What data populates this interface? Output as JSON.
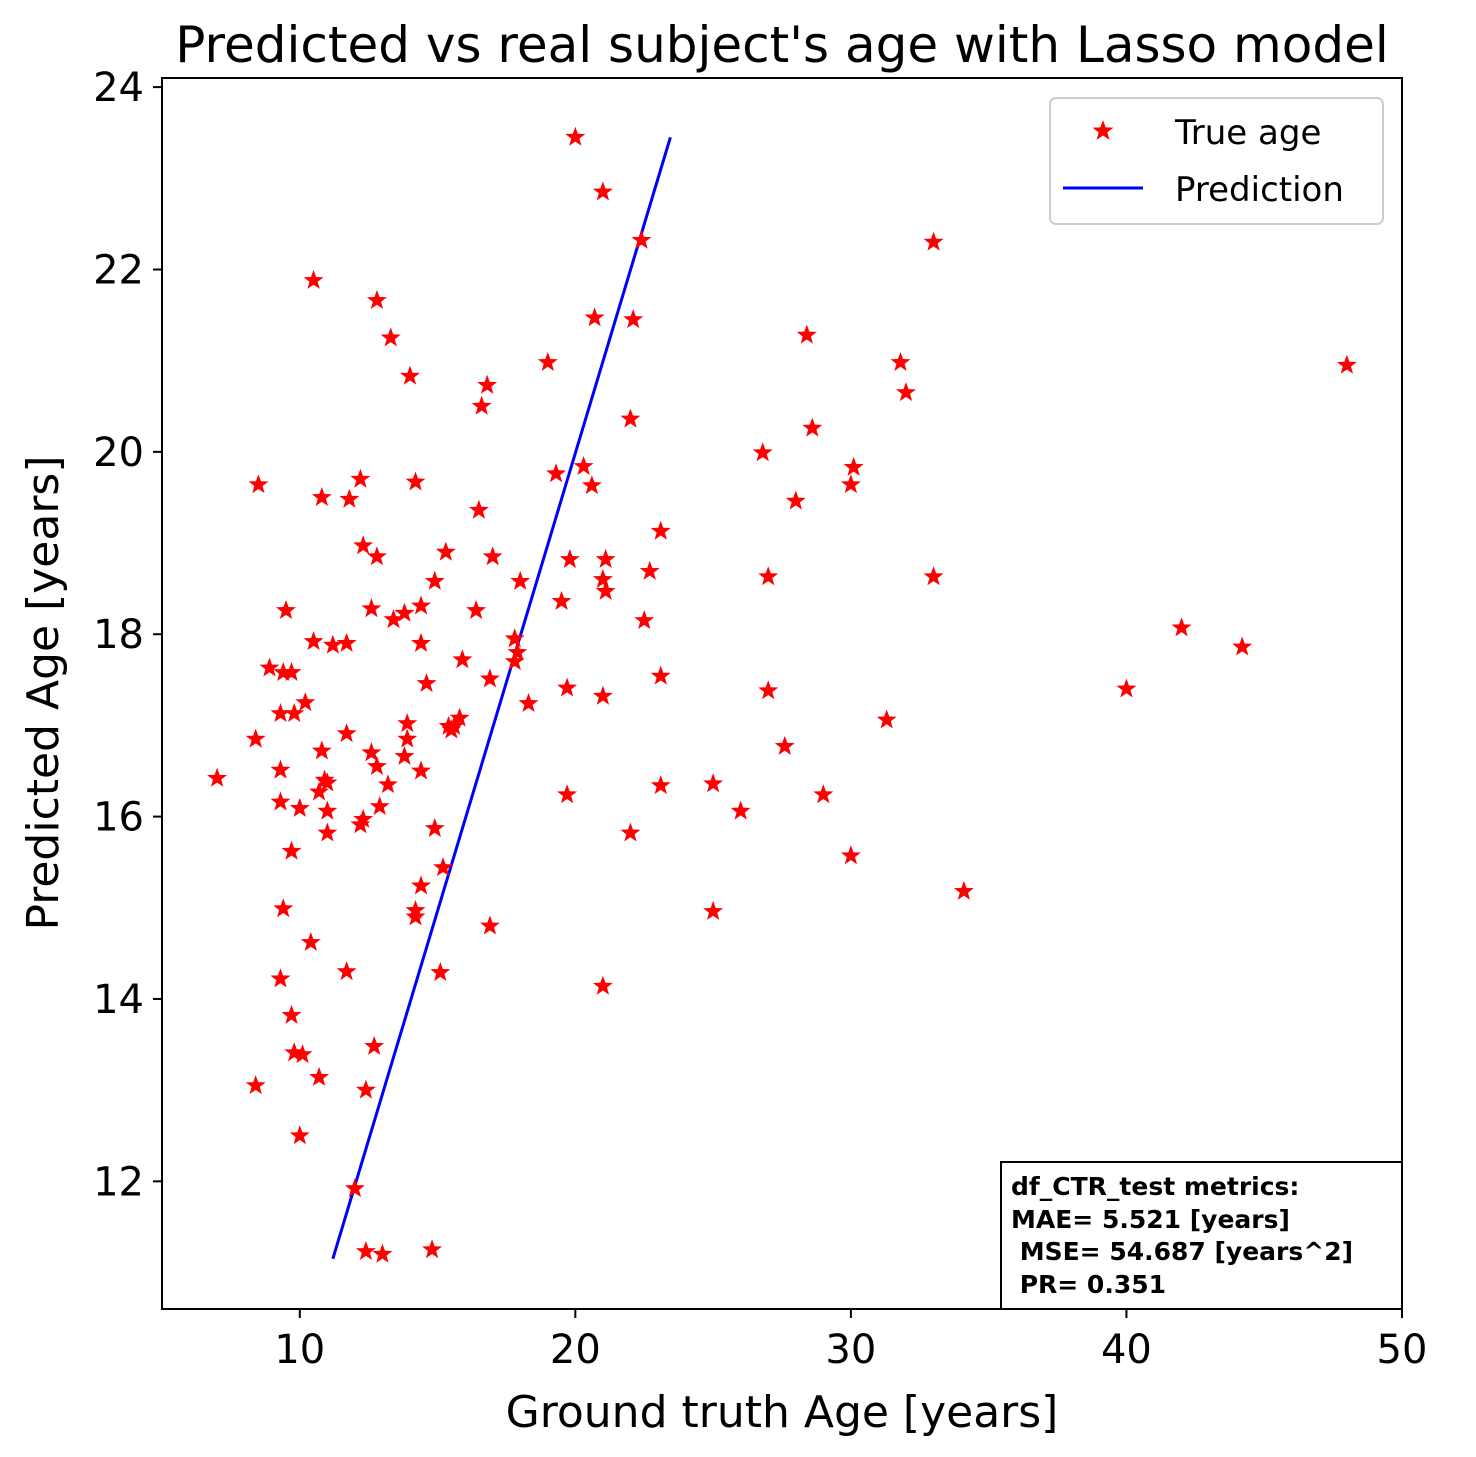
{
  "chart_data": {
    "type": "scatter",
    "title": "Predicted vs real subject's age with Lasso model",
    "xlabel": "Ground truth Age [years]",
    "ylabel": "Predicted Age [years]",
    "xlim": [
      5,
      50
    ],
    "ylim": [
      10.6,
      24.1
    ],
    "xticks": [
      10,
      20,
      30,
      40,
      50
    ],
    "yticks": [
      12,
      14,
      16,
      18,
      20,
      22,
      24
    ],
    "grid": false,
    "legend_position": "top-right",
    "legend": [
      {
        "label": "True age",
        "marker": "star",
        "color": "#ff0000"
      },
      {
        "label": "Prediction",
        "marker": "line",
        "color": "#0000ff"
      }
    ],
    "metrics_box": {
      "position": "bottom-right",
      "lines": [
        "df_CTR_test metrics:",
        "MAE= 5.521 [years]",
        " MSE= 54.687 [years^2]",
        " PR= 0.351"
      ]
    },
    "series": [
      {
        "name": "True age",
        "type": "scatter",
        "color": "#ff0000",
        "points": [
          [
            20.0,
            23.45
          ],
          [
            21.0,
            22.85
          ],
          [
            22.4,
            22.32
          ],
          [
            33.0,
            22.3
          ],
          [
            10.5,
            21.88
          ],
          [
            12.8,
            21.66
          ],
          [
            20.7,
            21.47
          ],
          [
            22.1,
            21.45
          ],
          [
            28.4,
            21.28
          ],
          [
            13.3,
            21.25
          ],
          [
            19.0,
            20.98
          ],
          [
            31.8,
            20.98
          ],
          [
            48.0,
            20.95
          ],
          [
            14.0,
            20.83
          ],
          [
            16.8,
            20.73
          ],
          [
            32.0,
            20.65
          ],
          [
            16.6,
            20.5
          ],
          [
            22.0,
            20.36
          ],
          [
            28.6,
            20.26
          ],
          [
            26.8,
            19.99
          ],
          [
            20.3,
            19.84
          ],
          [
            30.1,
            19.83
          ],
          [
            19.3,
            19.76
          ],
          [
            12.2,
            19.7
          ],
          [
            14.2,
            19.67
          ],
          [
            8.5,
            19.64
          ],
          [
            20.6,
            19.63
          ],
          [
            30.0,
            19.64
          ],
          [
            10.8,
            19.5
          ],
          [
            11.8,
            19.48
          ],
          [
            28.0,
            19.46
          ],
          [
            16.5,
            19.36
          ],
          [
            23.1,
            19.13
          ],
          [
            12.3,
            18.97
          ],
          [
            15.3,
            18.9
          ],
          [
            17.0,
            18.85
          ],
          [
            12.8,
            18.85
          ],
          [
            19.8,
            18.82
          ],
          [
            21.1,
            18.82
          ],
          [
            22.7,
            18.69
          ],
          [
            27.0,
            18.63
          ],
          [
            33.0,
            18.63
          ],
          [
            21.0,
            18.6
          ],
          [
            14.9,
            18.58
          ],
          [
            18.0,
            18.58
          ],
          [
            21.1,
            18.47
          ],
          [
            19.5,
            18.36
          ],
          [
            14.4,
            18.31
          ],
          [
            12.6,
            18.28
          ],
          [
            9.5,
            18.26
          ],
          [
            16.4,
            18.26
          ],
          [
            13.8,
            18.23
          ],
          [
            13.4,
            18.16
          ],
          [
            22.5,
            18.15
          ],
          [
            42.0,
            18.07
          ],
          [
            17.8,
            17.95
          ],
          [
            10.5,
            17.92
          ],
          [
            14.4,
            17.9
          ],
          [
            11.2,
            17.88
          ],
          [
            11.7,
            17.9
          ],
          [
            44.2,
            17.86
          ],
          [
            17.9,
            17.8
          ],
          [
            17.8,
            17.7
          ],
          [
            15.9,
            17.72
          ],
          [
            8.9,
            17.63
          ],
          [
            9.4,
            17.58
          ],
          [
            9.7,
            17.58
          ],
          [
            16.9,
            17.51
          ],
          [
            23.1,
            17.54
          ],
          [
            14.6,
            17.46
          ],
          [
            19.7,
            17.41
          ],
          [
            40.0,
            17.4
          ],
          [
            27.0,
            17.38
          ],
          [
            21.0,
            17.32
          ],
          [
            18.3,
            17.24
          ],
          [
            10.2,
            17.25
          ],
          [
            9.3,
            17.13
          ],
          [
            9.8,
            17.13
          ],
          [
            15.8,
            17.08
          ],
          [
            31.3,
            17.06
          ],
          [
            13.9,
            17.02
          ],
          [
            15.4,
            16.99
          ],
          [
            15.6,
            16.99
          ],
          [
            15.5,
            16.95
          ],
          [
            11.7,
            16.91
          ],
          [
            13.9,
            16.85
          ],
          [
            8.4,
            16.85
          ],
          [
            27.6,
            16.77
          ],
          [
            10.8,
            16.72
          ],
          [
            12.6,
            16.7
          ],
          [
            13.8,
            16.66
          ],
          [
            12.8,
            16.55
          ],
          [
            9.3,
            16.51
          ],
          [
            14.4,
            16.5
          ],
          [
            7.0,
            16.42
          ],
          [
            10.9,
            16.4
          ],
          [
            11.0,
            16.37
          ],
          [
            25.0,
            16.36
          ],
          [
            13.2,
            16.35
          ],
          [
            23.1,
            16.34
          ],
          [
            10.7,
            16.27
          ],
          [
            29.0,
            16.24
          ],
          [
            19.7,
            16.24
          ],
          [
            9.3,
            16.16
          ],
          [
            12.9,
            16.11
          ],
          [
            10.0,
            16.09
          ],
          [
            26.0,
            16.06
          ],
          [
            11.0,
            16.06
          ],
          [
            12.3,
            15.97
          ],
          [
            12.2,
            15.91
          ],
          [
            14.9,
            15.87
          ],
          [
            11.0,
            15.82
          ],
          [
            22.0,
            15.82
          ],
          [
            9.7,
            15.62
          ],
          [
            30.0,
            15.57
          ],
          [
            15.2,
            15.44
          ],
          [
            14.4,
            15.24
          ],
          [
            34.1,
            15.18
          ],
          [
            9.4,
            14.99
          ],
          [
            14.2,
            14.97
          ],
          [
            25.0,
            14.96
          ],
          [
            14.2,
            14.9
          ],
          [
            16.9,
            14.8
          ],
          [
            10.4,
            14.62
          ],
          [
            11.7,
            14.3
          ],
          [
            15.1,
            14.29
          ],
          [
            9.3,
            14.22
          ],
          [
            21.0,
            14.14
          ],
          [
            9.7,
            13.82
          ],
          [
            12.7,
            13.48
          ],
          [
            9.8,
            13.41
          ],
          [
            10.1,
            13.39
          ],
          [
            10.7,
            13.14
          ],
          [
            8.4,
            13.05
          ],
          [
            12.4,
            13.0
          ],
          [
            10.0,
            12.5
          ],
          [
            12.0,
            11.92
          ],
          [
            14.8,
            11.25
          ],
          [
            12.4,
            11.23
          ],
          [
            13.0,
            11.2
          ]
        ]
      },
      {
        "name": "Prediction",
        "type": "line",
        "color": "#0000ff",
        "points": [
          [
            11.2,
            11.15
          ],
          [
            23.45,
            23.45
          ]
        ]
      }
    ]
  }
}
